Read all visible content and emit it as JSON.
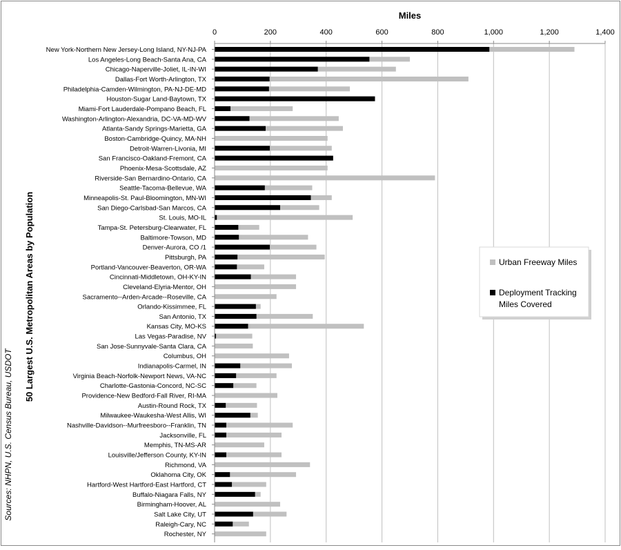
{
  "colors": {
    "urban": "#c0c0c0",
    "deploy": "#000000",
    "grid": "#bfbfbf",
    "text": "#000000",
    "border": "#888888"
  },
  "sources": "Sources: NHPN, U.S. Census Bureau, USDOT",
  "chart_data": {
    "type": "bar",
    "orientation": "horizontal",
    "xlabel": "Miles",
    "ylabel": "50 Largest U.S. Metropolitan Areas by Population",
    "xlim": [
      0,
      1400
    ],
    "xticks": [
      0,
      200,
      400,
      600,
      800,
      1000,
      1200,
      1400
    ],
    "xtick_labels": [
      "0",
      "200",
      "400",
      "600",
      "800",
      "1,000",
      "1,200",
      "1,400"
    ],
    "grid": true,
    "legend_position": "right",
    "categories": [
      "New York-Northern New Jersey-Long Island, NY-NJ-PA",
      "Los Angeles-Long Beach-Santa Ana, CA",
      "Chicago-Naperville-Joliet, IL-IN-WI",
      "Dallas-Fort Worth-Arlington, TX",
      "Philadelphia-Camden-Wilmington, PA-NJ-DE-MD",
      "Houston-Sugar Land-Baytown, TX",
      "Miami-Fort Lauderdale-Pompano Beach, FL",
      "Washington-Arlington-Alexandria, DC-VA-MD-WV",
      "Atlanta-Sandy Springs-Marietta, GA",
      "Boston-Cambridge-Quincy, MA-NH",
      "Detroit-Warren-Livonia, MI",
      "San Francisco-Oakland-Fremont, CA",
      "Phoenix-Mesa-Scottsdale, AZ",
      "Riverside-San Bernardino-Ontario, CA",
      "Seattle-Tacoma-Bellevue, WA",
      "Minneapolis-St. Paul-Bloomington, MN-WI",
      "San Diego-Carlsbad-San Marcos, CA",
      "St. Louis, MO-IL",
      "Tampa-St. Petersburg-Clearwater, FL",
      "Baltimore-Towson, MD",
      "Denver-Aurora, CO /1",
      "Pittsburgh, PA",
      "Portland-Vancouver-Beaverton, OR-WA",
      "Cincinnati-Middletown, OH-KY-IN",
      "Cleveland-Elyria-Mentor, OH",
      "Sacramento--Arden-Arcade--Roseville, CA",
      "Orlando-Kissimmee, FL",
      "San Antonio, TX",
      "Kansas City, MO-KS",
      "Las Vegas-Paradise, NV",
      "San Jose-Sunnyvale-Santa Clara, CA",
      "Columbus, OH",
      "Indianapolis-Carmel, IN",
      "Virginia Beach-Norfolk-Newport News, VA-NC",
      "Charlotte-Gastonia-Concord, NC-SC",
      "Providence-New Bedford-Fall River, RI-MA",
      "Austin-Round Rock, TX",
      "Milwaukee-Waukesha-West Allis, WI",
      "Nashville-Davidson--Murfreesboro--Franklin, TN",
      "Jacksonville, FL",
      "Memphis, TN-MS-AR",
      "Louisville/Jefferson County, KY-IN",
      "Richmond, VA",
      "Oklahoma City, OK",
      "Hartford-West Hartford-East Hartford, CT",
      "Buffalo-Niagara Falls, NY",
      "Birmingham-Hoover, AL",
      "Salt Lake City, UT",
      "Raleigh-Cary, NC",
      "Rochester, NY"
    ],
    "series": [
      {
        "name": "Urban Freeway Miles",
        "color": "#c0c0c0",
        "values": [
          1290,
          700,
          650,
          910,
          485,
          570,
          280,
          445,
          460,
          405,
          420,
          420,
          405,
          790,
          350,
          420,
          375,
          495,
          160,
          335,
          365,
          395,
          178,
          292,
          292,
          222,
          165,
          352,
          535,
          135,
          137,
          267,
          277,
          222,
          150,
          225,
          152,
          155,
          280,
          240,
          178,
          240,
          342,
          292,
          185,
          165,
          235,
          258,
          123,
          185
        ]
      },
      {
        "name": "Deployment Tracking Miles Covered",
        "color": "#000000",
        "values": [
          985,
          555,
          370,
          197,
          195,
          575,
          57,
          125,
          183,
          0,
          198,
          425,
          0,
          0,
          180,
          345,
          235,
          8,
          85,
          87,
          198,
          82,
          80,
          130,
          0,
          0,
          148,
          150,
          120,
          5,
          0,
          0,
          92,
          77,
          67,
          0,
          40,
          128,
          42,
          42,
          0,
          42,
          0,
          55,
          62,
          145,
          0,
          138,
          65,
          0
        ]
      }
    ]
  }
}
